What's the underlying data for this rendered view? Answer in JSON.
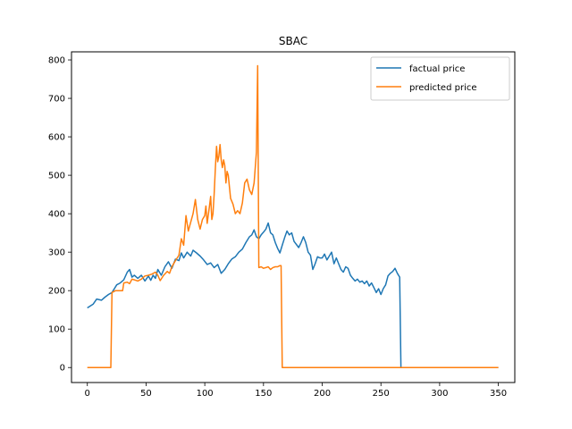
{
  "chart_data": {
    "type": "line",
    "title": "SBAC",
    "xlabel": "",
    "ylabel": "",
    "xlim": [
      -13.5,
      364
    ],
    "ylim": [
      -39,
      821
    ],
    "x_ticks": [
      0,
      50,
      100,
      150,
      200,
      250,
      300,
      350
    ],
    "y_ticks": [
      0,
      100,
      200,
      300,
      400,
      500,
      600,
      700,
      800
    ],
    "grid": false,
    "legend_placement": "top-right",
    "series": [
      {
        "name": "factual price",
        "color": "#1f77b4",
        "points": [
          [
            0,
            155
          ],
          [
            5,
            165
          ],
          [
            8,
            178
          ],
          [
            12,
            175
          ],
          [
            15,
            183
          ],
          [
            18,
            190
          ],
          [
            21,
            195
          ],
          [
            25,
            215
          ],
          [
            28,
            220
          ],
          [
            31,
            228
          ],
          [
            34,
            248
          ],
          [
            36,
            255
          ],
          [
            38,
            235
          ],
          [
            40,
            240
          ],
          [
            43,
            232
          ],
          [
            46,
            240
          ],
          [
            49,
            225
          ],
          [
            52,
            238
          ],
          [
            54,
            227
          ],
          [
            56,
            240
          ],
          [
            58,
            232
          ],
          [
            60,
            255
          ],
          [
            63,
            240
          ],
          [
            66,
            262
          ],
          [
            69,
            275
          ],
          [
            72,
            258
          ],
          [
            75,
            282
          ],
          [
            78,
            278
          ],
          [
            80,
            298
          ],
          [
            82,
            285
          ],
          [
            85,
            300
          ],
          [
            88,
            290
          ],
          [
            90,
            305
          ],
          [
            93,
            298
          ],
          [
            96,
            290
          ],
          [
            99,
            280
          ],
          [
            102,
            268
          ],
          [
            105,
            272
          ],
          [
            108,
            260
          ],
          [
            111,
            268
          ],
          [
            114,
            245
          ],
          [
            117,
            255
          ],
          [
            120,
            270
          ],
          [
            123,
            282
          ],
          [
            126,
            288
          ],
          [
            129,
            300
          ],
          [
            132,
            308
          ],
          [
            135,
            325
          ],
          [
            138,
            340
          ],
          [
            140,
            345
          ],
          [
            142,
            358
          ],
          [
            144,
            340
          ],
          [
            146,
            335
          ],
          [
            148,
            345
          ],
          [
            150,
            352
          ],
          [
            152,
            360
          ],
          [
            154,
            376
          ],
          [
            156,
            350
          ],
          [
            158,
            345
          ],
          [
            160,
            325
          ],
          [
            162,
            310
          ],
          [
            164,
            298
          ],
          [
            166,
            318
          ],
          [
            168,
            338
          ],
          [
            170,
            355
          ],
          [
            172,
            345
          ],
          [
            174,
            350
          ],
          [
            176,
            328
          ],
          [
            178,
            320
          ],
          [
            180,
            312
          ],
          [
            182,
            325
          ],
          [
            184,
            340
          ],
          [
            186,
            325
          ],
          [
            188,
            300
          ],
          [
            190,
            292
          ],
          [
            192,
            255
          ],
          [
            194,
            270
          ],
          [
            196,
            288
          ],
          [
            198,
            285
          ],
          [
            200,
            285
          ],
          [
            202,
            295
          ],
          [
            204,
            280
          ],
          [
            206,
            290
          ],
          [
            208,
            300
          ],
          [
            210,
            270
          ],
          [
            212,
            285
          ],
          [
            214,
            270
          ],
          [
            216,
            255
          ],
          [
            218,
            248
          ],
          [
            220,
            262
          ],
          [
            222,
            258
          ],
          [
            224,
            240
          ],
          [
            226,
            232
          ],
          [
            228,
            225
          ],
          [
            230,
            230
          ],
          [
            232,
            222
          ],
          [
            234,
            225
          ],
          [
            236,
            218
          ],
          [
            238,
            225
          ],
          [
            240,
            212
          ],
          [
            242,
            220
          ],
          [
            244,
            208
          ],
          [
            246,
            195
          ],
          [
            248,
            205
          ],
          [
            250,
            190
          ],
          [
            252,
            205
          ],
          [
            254,
            215
          ],
          [
            256,
            238
          ],
          [
            258,
            245
          ],
          [
            260,
            250
          ],
          [
            262,
            258
          ],
          [
            264,
            245
          ],
          [
            266,
            235
          ],
          [
            267,
            0
          ],
          [
            350,
            0
          ]
        ]
      },
      {
        "name": "predicted price",
        "color": "#ff7f0e",
        "points": [
          [
            0,
            0
          ],
          [
            20,
            0
          ],
          [
            21,
            195
          ],
          [
            24,
            200
          ],
          [
            30,
            200
          ],
          [
            31,
            220
          ],
          [
            34,
            222
          ],
          [
            36,
            218
          ],
          [
            38,
            230
          ],
          [
            40,
            228
          ],
          [
            43,
            225
          ],
          [
            46,
            230
          ],
          [
            49,
            238
          ],
          [
            52,
            240
          ],
          [
            55,
            243
          ],
          [
            58,
            248
          ],
          [
            60,
            240
          ],
          [
            62,
            226
          ],
          [
            65,
            240
          ],
          [
            68,
            250
          ],
          [
            70,
            245
          ],
          [
            72,
            262
          ],
          [
            75,
            278
          ],
          [
            78,
            292
          ],
          [
            80,
            335
          ],
          [
            82,
            318
          ],
          [
            84,
            395
          ],
          [
            86,
            355
          ],
          [
            88,
            378
          ],
          [
            90,
            400
          ],
          [
            92,
            437
          ],
          [
            94,
            385
          ],
          [
            96,
            360
          ],
          [
            98,
            385
          ],
          [
            100,
            395
          ],
          [
            101,
            420
          ],
          [
            102,
            375
          ],
          [
            104,
            420
          ],
          [
            105,
            445
          ],
          [
            106,
            385
          ],
          [
            107,
            400
          ],
          [
            108,
            450
          ],
          [
            109,
            520
          ],
          [
            110,
            575
          ],
          [
            111,
            535
          ],
          [
            112,
            550
          ],
          [
            113,
            580
          ],
          [
            114,
            540
          ],
          [
            115,
            520
          ],
          [
            116,
            540
          ],
          [
            117,
            525
          ],
          [
            118,
            480
          ],
          [
            119,
            510
          ],
          [
            120,
            500
          ],
          [
            122,
            440
          ],
          [
            124,
            425
          ],
          [
            126,
            400
          ],
          [
            128,
            408
          ],
          [
            130,
            400
          ],
          [
            132,
            428
          ],
          [
            134,
            480
          ],
          [
            136,
            490
          ],
          [
            138,
            462
          ],
          [
            140,
            450
          ],
          [
            142,
            480
          ],
          [
            143,
            520
          ],
          [
            144,
            560
          ],
          [
            145,
            785
          ],
          [
            146,
            260
          ],
          [
            148,
            262
          ],
          [
            150,
            258
          ],
          [
            152,
            260
          ],
          [
            154,
            262
          ],
          [
            156,
            255
          ],
          [
            158,
            260
          ],
          [
            160,
            262
          ],
          [
            162,
            262
          ],
          [
            164,
            265
          ],
          [
            165,
            265
          ],
          [
            166,
            0
          ],
          [
            350,
            0
          ]
        ]
      }
    ]
  }
}
